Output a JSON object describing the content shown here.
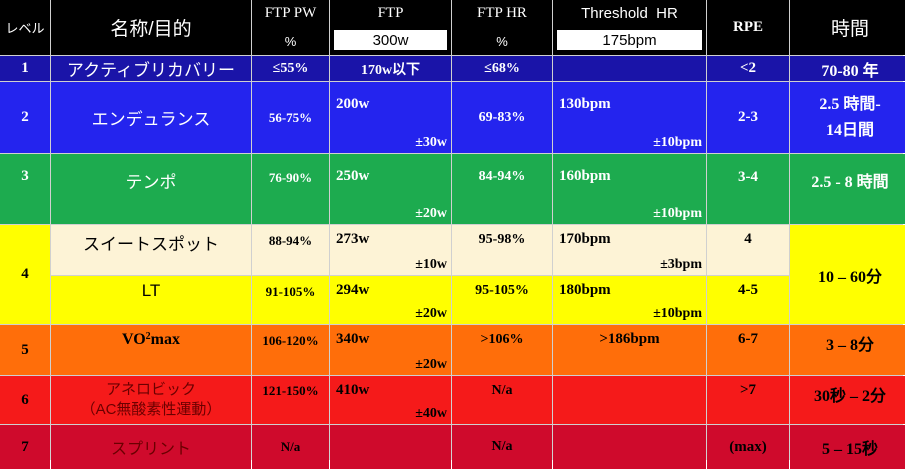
{
  "header": {
    "level": "レベル",
    "name": "名称/目的",
    "ftp_pw": "FTP PW",
    "ftp_pw_unit": "%",
    "ftp": "FTP",
    "ftp_value": "300w",
    "ftp_hr": "FTP HR",
    "ftp_hr_unit": "%",
    "threshold_hr": "Threshold  HR",
    "threshold_value": "175bpm",
    "rpe": "RPE",
    "time": "時間"
  },
  "rows": [
    {
      "level": "1",
      "name": "アクティブリカバリー",
      "ftp_pw": "≤55%",
      "ftp": "170w以下",
      "ftp_hr": "≤68%",
      "rpe": "<2",
      "time": "70-80 年"
    },
    {
      "level": "2",
      "name": "エンデュランス",
      "ftp_pw": "56-75%",
      "ftp": "200w",
      "ftp_tol": "±30w",
      "ftp_hr": "69-83%",
      "hr": "130bpm",
      "hr_tol": "±10bpm",
      "rpe": "2-3",
      "time_1": "2.5 時間-",
      "time_2": "14日間"
    },
    {
      "level": "3",
      "name": "テンポ",
      "ftp_pw": "76-90%",
      "ftp": "250w",
      "ftp_tol": "±20w",
      "ftp_hr": "84-94%",
      "hr": "160bpm",
      "hr_tol": "±10bpm",
      "rpe": "3-4",
      "time": "2.5 - 8 時間"
    },
    {
      "level": "4",
      "name_a": "スイートスポット",
      "ftp_pw_a": "88-94%",
      "ftp_a": "273w",
      "ftp_tol_a": "±10w",
      "ftp_hr_a": "95-98%",
      "hr_a": "170bpm",
      "hr_tol_a": "±3bpm",
      "rpe_a": "4",
      "name_b": "LT",
      "ftp_pw_b": "91-105%",
      "ftp_b": "294w",
      "ftp_tol_b": "±20w",
      "ftp_hr_b": "95-105%",
      "hr_b": "180bpm",
      "hr_tol_b": "±10bpm",
      "rpe_b": "4-5",
      "time": "10 – 60分"
    },
    {
      "level": "5",
      "name_main": "VO",
      "name_sub": "2",
      "name_tail": "max",
      "ftp_pw": "106-120%",
      "ftp": "340w",
      "ftp_tol": "±20w",
      "ftp_hr": ">106%",
      "hr": ">186bpm",
      "rpe": "6-7",
      "time": "3 – 8分"
    },
    {
      "level": "6",
      "name_1": "アネロビック",
      "name_2": "（AC無酸素性運動）",
      "ftp_pw": "121-150%",
      "ftp": "410w",
      "ftp_tol": "±40w",
      "ftp_hr": "N/a",
      "rpe": ">7",
      "time": "30秒 – 2分"
    },
    {
      "level": "7",
      "name": "スプリント",
      "ftp_pw": "N/a",
      "ftp_hr": "N/a",
      "rpe": "(max)",
      "time": "5 – 15秒"
    }
  ]
}
